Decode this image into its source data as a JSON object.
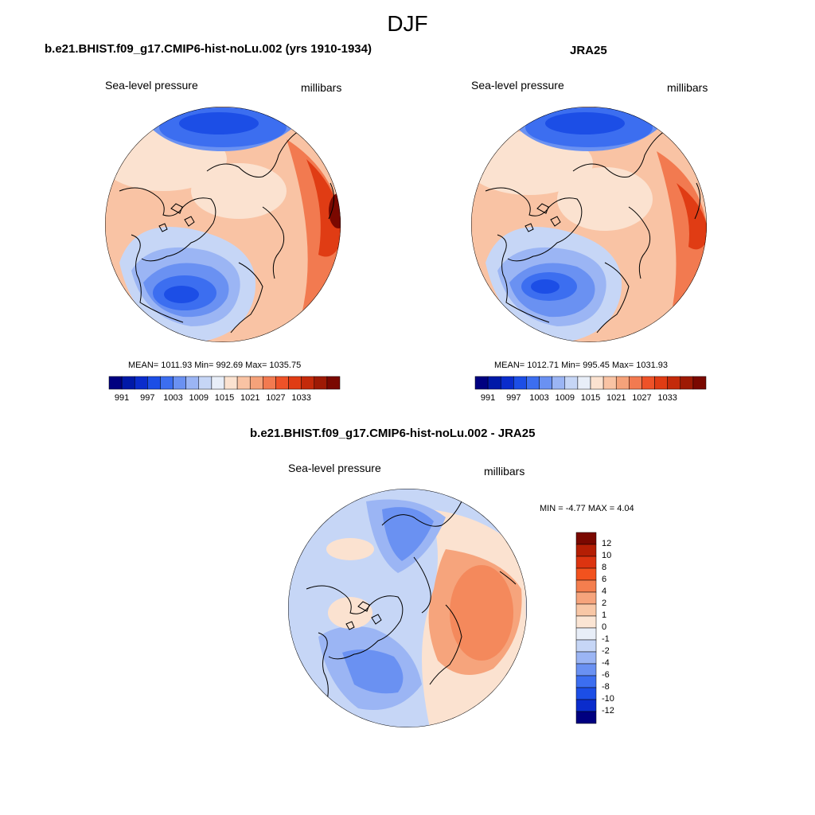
{
  "figure": {
    "title": "DJF"
  },
  "panels": {
    "model": {
      "title": "b.e21.BHIST.f09_g17.CMIP6-hist-noLu.002 (yrs 1910-1934)",
      "left_label": "Sea-level pressure",
      "right_label": "millibars",
      "stats": "MEAN= 1011.93  Min= 992.69  Max= 1035.75"
    },
    "obs": {
      "title": "JRA25",
      "left_label": "Sea-level pressure",
      "right_label": "millibars",
      "stats": "MEAN= 1012.71  Min= 995.45  Max= 1031.93"
    },
    "diff": {
      "title": "b.e21.BHIST.f09_g17.CMIP6-hist-noLu.002 - JRA25",
      "left_label": "Sea-level pressure",
      "right_label": "millibars",
      "stats": "MIN =  -4.77 MAX =   4.04"
    }
  },
  "colorbars": {
    "horizontal_ticks": [
      "991",
      "997",
      "1003",
      "1009",
      "1015",
      "1021",
      "1027",
      "1033"
    ],
    "horizontal_colors": [
      "#000080",
      "#0019a8",
      "#0a2ccc",
      "#1c4ee6",
      "#3c6ef0",
      "#6a91f2",
      "#9bb5f4",
      "#c6d6f6",
      "#e8eef8",
      "#fbe2d0",
      "#f9c3a4",
      "#f5a27a",
      "#f27a50",
      "#ee5228",
      "#e03c14",
      "#c42a0a",
      "#9e1a04",
      "#7a0800"
    ],
    "vertical_ticks": [
      "12",
      "10",
      "8",
      "6",
      "4",
      "2",
      "1",
      "0",
      "-1",
      "-2",
      "-4",
      "-6",
      "-8",
      "-10",
      "-12"
    ],
    "vertical_colors": [
      "#7a0800",
      "#b41e04",
      "#dc3410",
      "#f2521e",
      "#f47e4e",
      "#f6a47c",
      "#f8c7a6",
      "#fbe5d4",
      "#e8eef8",
      "#c6d6f6",
      "#9bb5f4",
      "#6a91f2",
      "#3c6ef0",
      "#1c4ee6",
      "#0a2ccc",
      "#000080"
    ]
  },
  "map_regions": {
    "model": [
      {
        "color": "#f9c3a4",
        "level": "1015-1018"
      },
      {
        "color": "#f27a50",
        "level": "1024-1027"
      },
      {
        "color": "#e03c14",
        "level": "1030-1033"
      },
      {
        "color": "#1c4ee6",
        "level": "997-1000"
      },
      {
        "color": "#9bb5f4",
        "level": "1006-1009"
      }
    ],
    "diff": [
      {
        "color": "#c6d6f6",
        "level": "-1 to -2"
      },
      {
        "color": "#f6a47c",
        "level": "2 to 4"
      },
      {
        "color": "#9bb5f4",
        "level": "-2 to -4"
      }
    ]
  }
}
